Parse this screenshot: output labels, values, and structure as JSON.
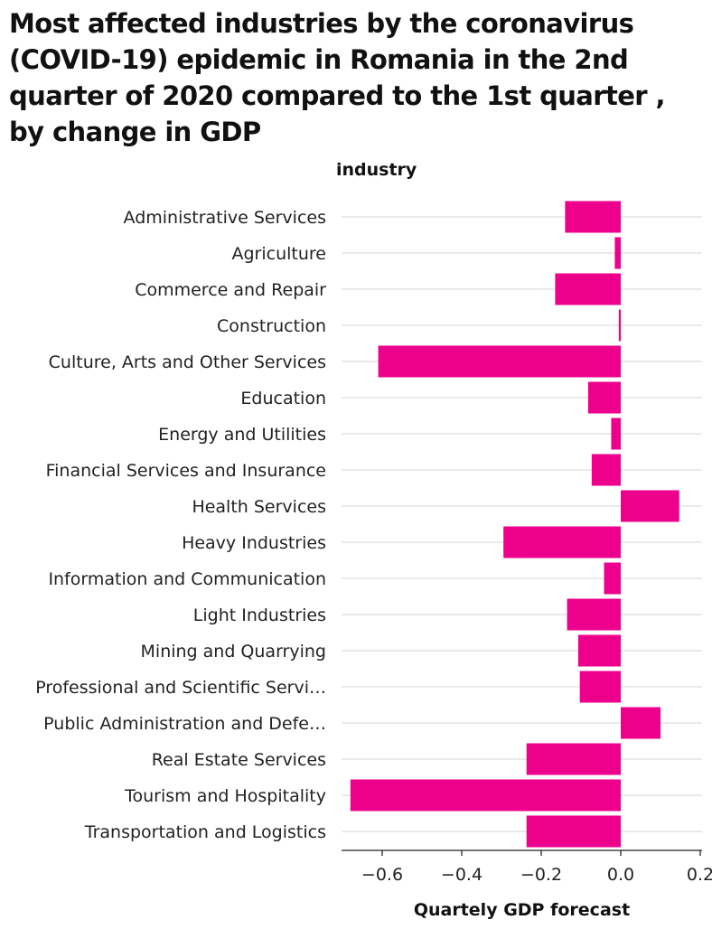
{
  "chart_data": {
    "type": "bar",
    "orientation": "horizontal",
    "title": "Most affected industries by the coronavirus (COVID-19) epidemic in Romania in the 2nd quarter of 2020 compared to the 1st quarter , by change in GDP",
    "ylabel": "industry",
    "xlabel": "Quartely GDP forecast",
    "categories": [
      "Administrative Services",
      "Agriculture",
      "Commerce and Repair",
      "Construction",
      "Culture, Arts and Other Services",
      "Education",
      "Energy and Utilities",
      "Financial Services and Insurance",
      "Health Services",
      "Heavy Industries",
      "Information and Communication",
      "Light Industries",
      "Mining and Quarrying",
      "Professional and Scientific Servi…",
      "Public Administration and Defe…",
      "Real Estate Services",
      "Tourism and Hospitality",
      "Transportation and Logistics"
    ],
    "values": [
      -0.14,
      -0.015,
      -0.165,
      -0.005,
      -0.61,
      -0.082,
      -0.024,
      -0.073,
      0.147,
      -0.295,
      -0.042,
      -0.135,
      -0.107,
      -0.103,
      0.1,
      -0.237,
      -0.68,
      -0.237
    ],
    "xlim": [
      -0.7,
      0.2
    ],
    "xticks": [
      -0.6,
      -0.4,
      -0.2,
      0.0,
      0.2
    ],
    "xtick_labels": [
      "−0.6",
      "−0.4",
      "−0.2",
      "0.0",
      "0.2"
    ],
    "bar_color": "#ec008c",
    "grid_color": "#dddddd",
    "grid": true,
    "legend": "none"
  }
}
